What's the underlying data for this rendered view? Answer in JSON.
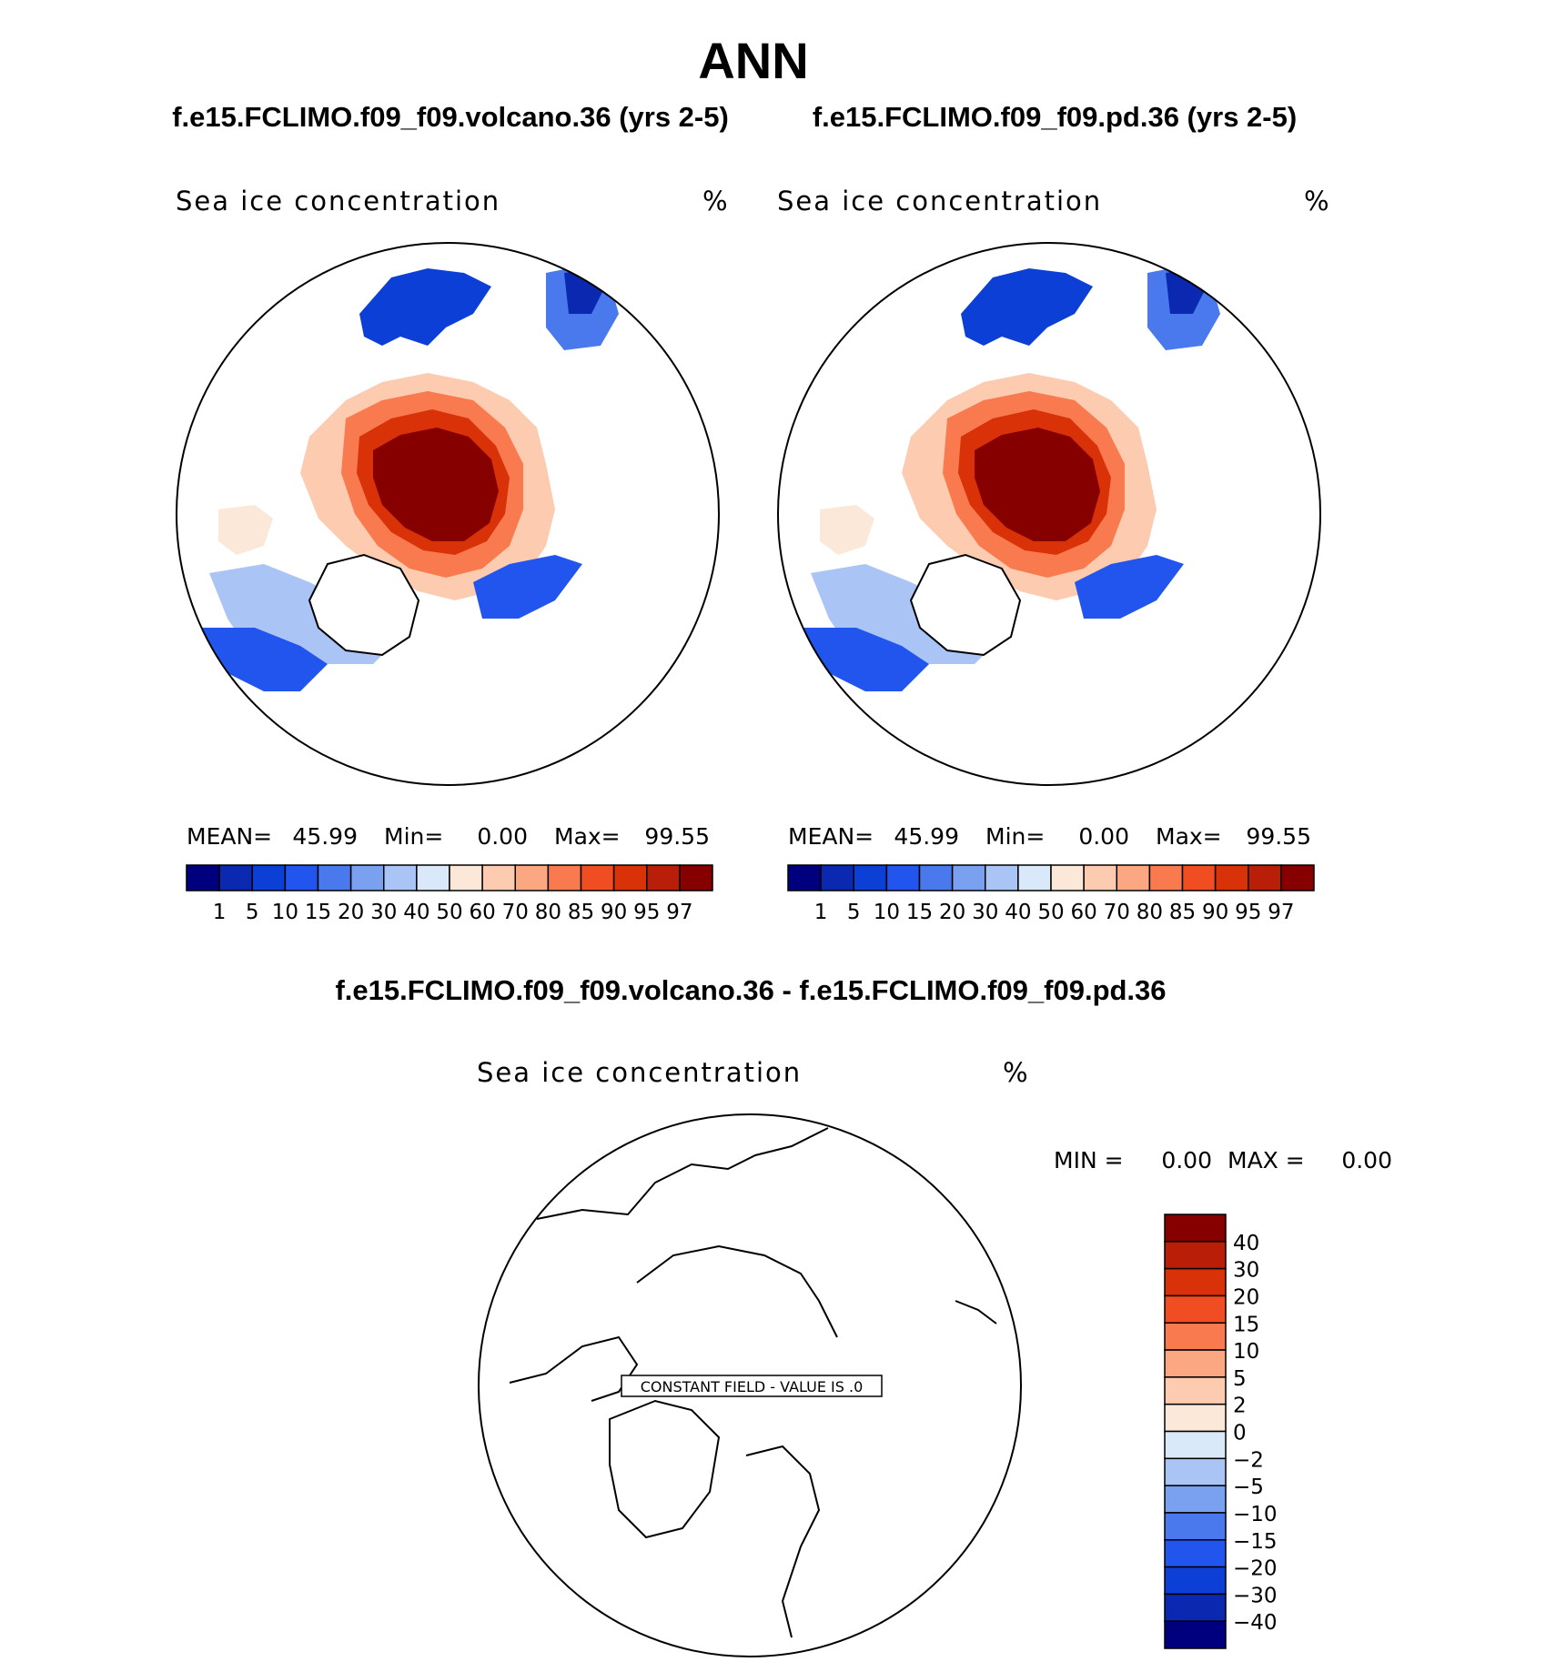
{
  "figure": {
    "title": "ANN",
    "panel1_title": "f.e15.FCLIMO.f09_f09.volcano.36 (yrs 2-5)",
    "panel2_title": "f.e15.FCLIMO.f09_f09.pd.36 (yrs 2-5)",
    "diff_title": "f.e15.FCLIMO.f09_f09.volcano.36 - f.e15.FCLIMO.f09_f09.pd.36"
  },
  "panels": [
    {
      "variable": "Sea ice concentration",
      "units": "%",
      "stats": {
        "mean_label": "MEAN=",
        "mean": "45.99",
        "min_label": "Min=",
        "min": "0.00",
        "max_label": "Max=",
        "max": "99.55"
      }
    },
    {
      "variable": "Sea ice concentration",
      "units": "%",
      "stats": {
        "mean_label": "MEAN=",
        "mean": "45.99",
        "min_label": "Min=",
        "min": "0.00",
        "max_label": "Max=",
        "max": "99.55"
      }
    }
  ],
  "diff_panel": {
    "variable": "Sea ice concentration",
    "units": "%",
    "min_label": "MIN =",
    "min": "0.00",
    "max_label": "MAX =",
    "max": "0.00",
    "constant_label": "CONSTANT FIELD - VALUE IS .0"
  },
  "colorbar": {
    "levels": [
      "1",
      "5",
      "10",
      "15",
      "20",
      "30",
      "40",
      "50",
      "60",
      "70",
      "80",
      "85",
      "90",
      "95",
      "97"
    ],
    "colors": [
      "#00007f",
      "#0a28b0",
      "#0b3fd6",
      "#2255ee",
      "#4a79ee",
      "#7aa0f0",
      "#a9c4f5",
      "#d9e9fa",
      "#fbe8d8",
      "#fccbb0",
      "#fba882",
      "#f87a4e",
      "#f04d22",
      "#d93208",
      "#b81e08",
      "#860000"
    ]
  },
  "diff_colorbar": {
    "levels": [
      "40",
      "30",
      "20",
      "15",
      "10",
      "5",
      "2",
      "0",
      "−2",
      "−5",
      "−10",
      "−15",
      "−20",
      "−30",
      "−40"
    ],
    "colors": [
      "#860000",
      "#b81e08",
      "#d93208",
      "#f04d22",
      "#f87a4e",
      "#fba882",
      "#fccbb0",
      "#fbe8d8",
      "#d9e9fa",
      "#a9c4f5",
      "#7aa0f0",
      "#4a79ee",
      "#2255ee",
      "#0b3fd6",
      "#0a28b0",
      "#00007f"
    ]
  }
}
